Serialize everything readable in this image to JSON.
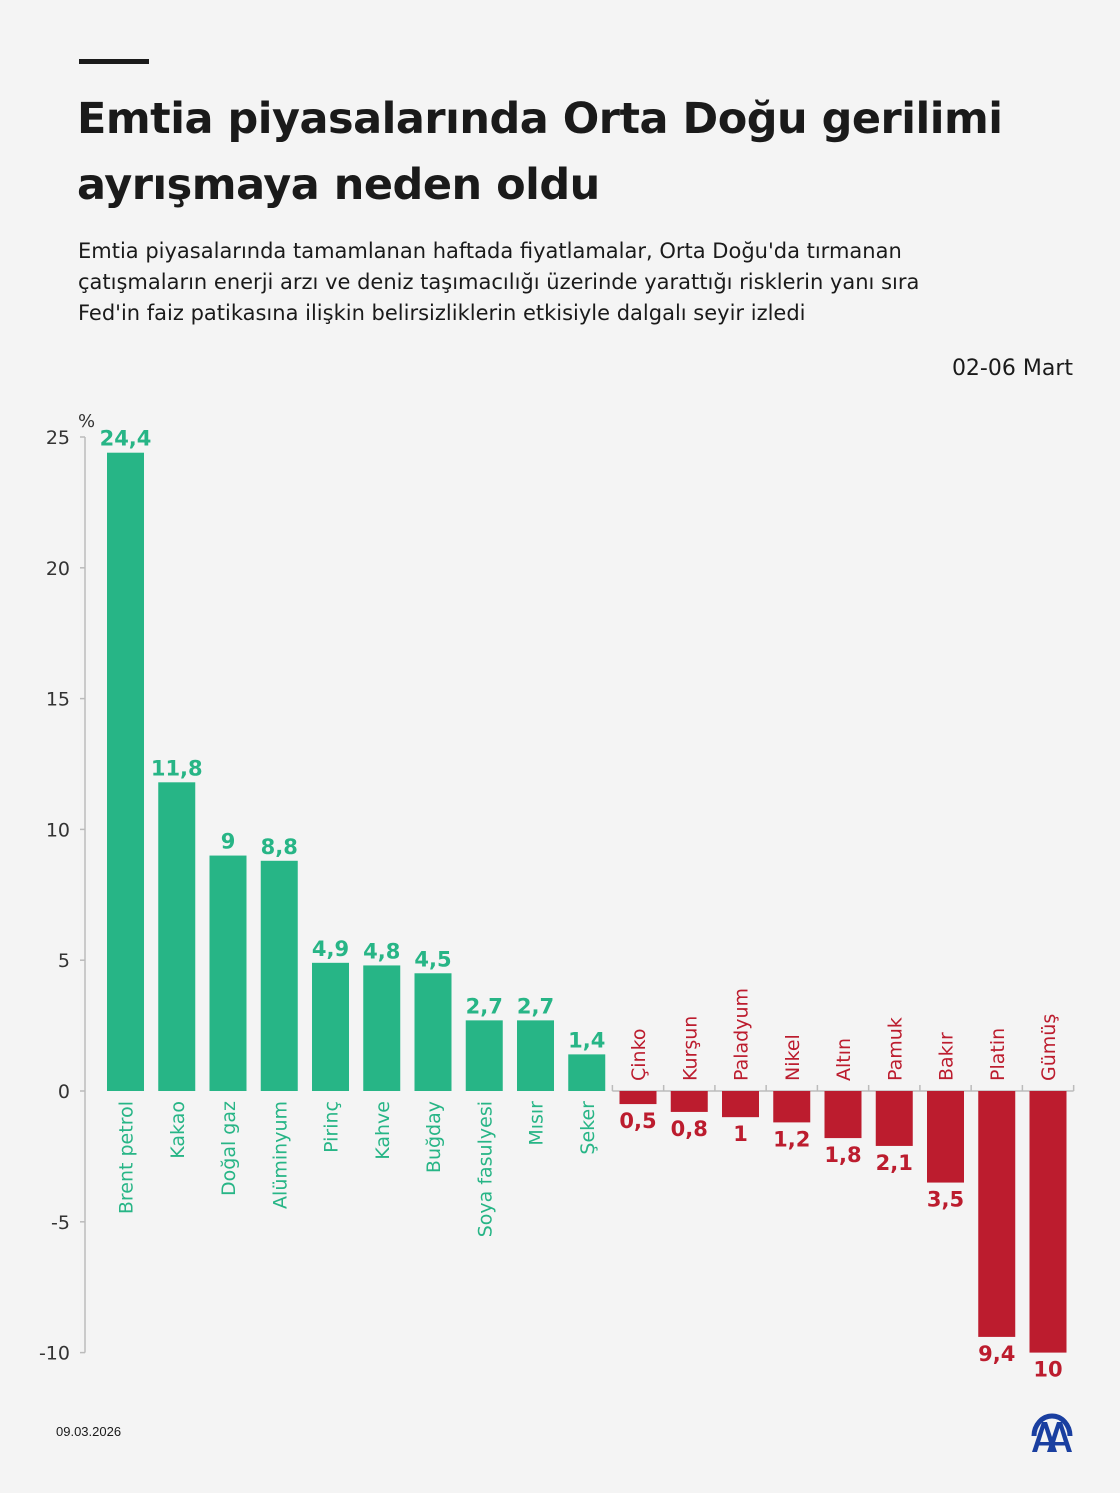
{
  "header": {
    "title": "Emtia piyasalarında Orta Doğu gerilimi ayrışmaya neden oldu",
    "subtitle": "Emtia piyasalarında tamamlanan haftada fiyatlamalar, Orta Doğu'da tırmanan çatışmaların enerji arzı ve deniz taşımacılığı üzerinde yarattığı risklerin yanı sıra Fed'in faiz patikasına ilişkin belirsizliklerin etkisiyle dalgalı seyir izledi",
    "period": "02-06 Mart"
  },
  "footer": {
    "date": "09.03.2026",
    "logo": "AA"
  },
  "colors": {
    "positive": "#27b586",
    "negative": "#bc1c2e",
    "axis": "#bbbbbb"
  },
  "chart_data": {
    "type": "bar",
    "ylabel": "%",
    "ylim": [
      -10,
      25
    ],
    "yticks": [
      25,
      20,
      15,
      10,
      5,
      0,
      -5,
      -10
    ],
    "grid": false,
    "categories": [
      "Brent petrol",
      "Kakao",
      "Doğal gaz",
      "Alüminyum",
      "Pirinç",
      "Kahve",
      "Buğday",
      "Soya fasulyesi",
      "Mısır",
      "Şeker",
      "Çinko",
      "Kurşun",
      "Paladyum",
      "Nikel",
      "Altın",
      "Pamuk",
      "Bakır",
      "Platin",
      "Gümüş"
    ],
    "values": [
      24.4,
      11.8,
      9,
      8.8,
      4.9,
      4.8,
      4.5,
      2.7,
      2.7,
      1.4,
      -0.5,
      -0.8,
      -1,
      -1.2,
      -1.8,
      -2.1,
      -3.5,
      -9.4,
      -10
    ],
    "data_labels": [
      "24,4",
      "11,8",
      "9",
      "8,8",
      "4,9",
      "4,8",
      "4,5",
      "2,7",
      "2,7",
      "1,4",
      "0,5",
      "0,8",
      "1",
      "1,2",
      "1,8",
      "2,1",
      "3,5",
      "9,4",
      "10"
    ]
  }
}
